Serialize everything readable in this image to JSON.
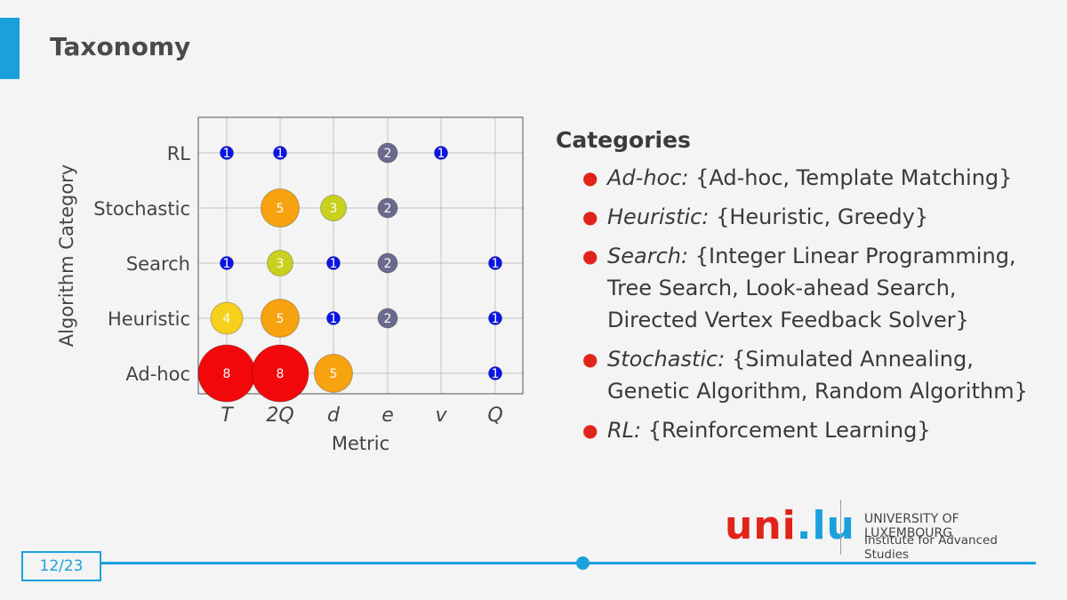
{
  "slide": {
    "title": "Taxonomy"
  },
  "categories": {
    "heading": "Categories",
    "items": [
      {
        "name": "Ad-hoc:",
        "lines": [
          "{Ad-hoc, Template Matching}"
        ]
      },
      {
        "name": "Heuristic:",
        "lines": [
          "{Heuristic, Greedy}"
        ]
      },
      {
        "name": "Search:",
        "lines": [
          "{Integer Linear Programming,",
          "Tree Search, Look-ahead Search,",
          "Directed Vertex Feedback Solver}"
        ]
      },
      {
        "name": "Stochastic:",
        "lines": [
          "{Simulated Annealing,",
          "Genetic Algorithm, Random Algorithm}"
        ]
      },
      {
        "name": "RL:",
        "lines": [
          "{Reinforcement Learning}"
        ]
      }
    ]
  },
  "logo": {
    "mark_uni": "uni",
    "mark_dot": ".",
    "mark_lu": "lu",
    "university": "UNIVERSITY OF LUXEMBOURG",
    "institute": "Institute for Advanced Studies"
  },
  "footer": {
    "page": "12/23"
  },
  "chart_data": {
    "type": "scatter",
    "xlabel": "Metric",
    "ylabel": "Algorithm Category",
    "x_categories": [
      "T",
      "2Q",
      "d",
      "e",
      "v",
      "Q"
    ],
    "y_categories": [
      "Ad-hoc",
      "Heuristic",
      "Search",
      "Stochastic",
      "RL"
    ],
    "grid": true,
    "points": [
      {
        "x": "T",
        "y": "RL",
        "value": 1
      },
      {
        "x": "2Q",
        "y": "RL",
        "value": 1
      },
      {
        "x": "e",
        "y": "RL",
        "value": 2
      },
      {
        "x": "v",
        "y": "RL",
        "value": 1
      },
      {
        "x": "2Q",
        "y": "Stochastic",
        "value": 5
      },
      {
        "x": "d",
        "y": "Stochastic",
        "value": 3
      },
      {
        "x": "e",
        "y": "Stochastic",
        "value": 2
      },
      {
        "x": "T",
        "y": "Search",
        "value": 1
      },
      {
        "x": "2Q",
        "y": "Search",
        "value": 3
      },
      {
        "x": "d",
        "y": "Search",
        "value": 1
      },
      {
        "x": "e",
        "y": "Search",
        "value": 2
      },
      {
        "x": "Q",
        "y": "Search",
        "value": 1
      },
      {
        "x": "T",
        "y": "Heuristic",
        "value": 4
      },
      {
        "x": "2Q",
        "y": "Heuristic",
        "value": 5
      },
      {
        "x": "d",
        "y": "Heuristic",
        "value": 1
      },
      {
        "x": "e",
        "y": "Heuristic",
        "value": 2
      },
      {
        "x": "Q",
        "y": "Heuristic",
        "value": 1
      },
      {
        "x": "T",
        "y": "Ad-hoc",
        "value": 8
      },
      {
        "x": "2Q",
        "y": "Ad-hoc",
        "value": 8
      },
      {
        "x": "d",
        "y": "Ad-hoc",
        "value": 5
      },
      {
        "x": "Q",
        "y": "Ad-hoc",
        "value": 1
      }
    ],
    "value_colors": {
      "1": "#0a14e6",
      "2": "#6a6a8e",
      "3": "#c8d21e",
      "4": "#f6d01a",
      "5": "#f7a30f",
      "8": "#f2070a"
    }
  }
}
